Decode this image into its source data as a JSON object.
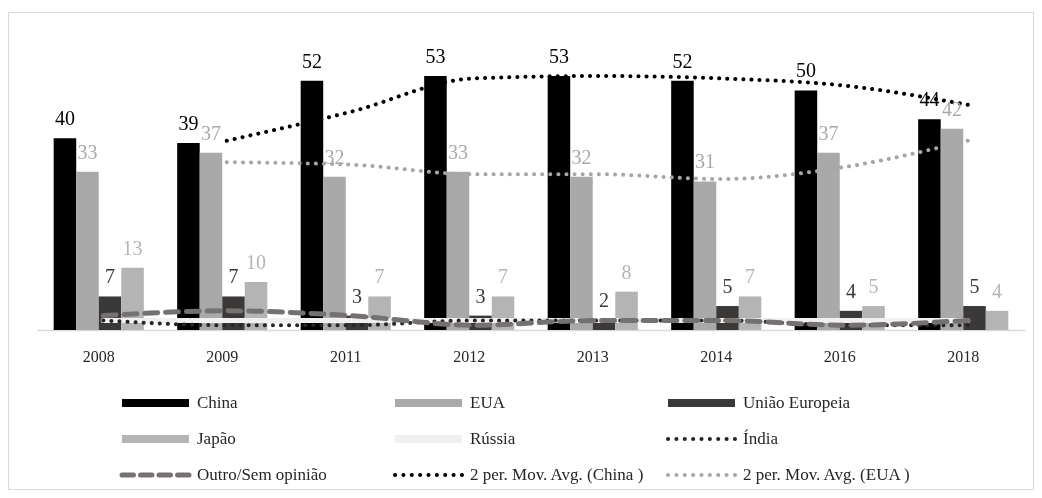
{
  "chart_data": {
    "type": "bar",
    "categories": [
      "2008",
      "2009",
      "2011",
      "2012",
      "2013",
      "2014",
      "2016",
      "2018"
    ],
    "series": [
      {
        "name": "China",
        "color": "#000000",
        "values": [
          40,
          39,
          52,
          53,
          53,
          52,
          50,
          44
        ],
        "value_labels": [
          "40",
          "39",
          "52",
          "53",
          "53",
          "52",
          "50",
          "44"
        ]
      },
      {
        "name": "EUA",
        "color": "#a9a9a9",
        "values": [
          33,
          37,
          32,
          33,
          32,
          31,
          37,
          42
        ],
        "value_labels": [
          "33",
          "37",
          "32",
          "33",
          "32",
          "31",
          "37",
          "42"
        ]
      },
      {
        "name": "União Europeia",
        "color": "#3b3838",
        "values": [
          7,
          7,
          3,
          3,
          2,
          5,
          4,
          5
        ],
        "value_labels": [
          "7",
          "7",
          "3",
          "3",
          "2",
          "5",
          "4",
          "5"
        ]
      },
      {
        "name": "Japão",
        "color": "#b4b4b4",
        "values": [
          13,
          10,
          7,
          7,
          8,
          7,
          5,
          4
        ],
        "value_labels": [
          "13",
          "10",
          "7",
          "7",
          "8",
          "7",
          "5",
          "4"
        ]
      },
      {
        "name": "Rússia",
        "type": "line",
        "color": "#f0f0f0",
        "line_style": "solid",
        "values": [
          2,
          2,
          2,
          2,
          2,
          2,
          2,
          2
        ]
      },
      {
        "name": "Índia",
        "type": "line",
        "color": "#262626",
        "line_style": "dotted",
        "values": [
          2,
          1,
          1,
          2,
          2,
          2,
          1,
          1
        ]
      },
      {
        "name": "Outro/Sem opinião",
        "type": "line",
        "color": "#767171",
        "line_style": "dashed",
        "values": [
          3,
          4,
          3,
          1,
          2,
          2,
          1,
          2
        ]
      },
      {
        "name": "2 per. Mov. Avg. (China )",
        "type": "line",
        "color": "#000000",
        "line_style": "dotted",
        "values": [
          null,
          39.5,
          45.5,
          52.5,
          53,
          52.5,
          51,
          47
        ]
      },
      {
        "name": "2 per. Mov. Avg. (EUA )",
        "type": "line",
        "color": "#a6a6a6",
        "line_style": "dotted",
        "values": [
          null,
          35,
          34.5,
          32.5,
          32.5,
          31.5,
          34,
          39.5
        ]
      }
    ],
    "tick_labels": "x",
    "legend": "bottom"
  }
}
